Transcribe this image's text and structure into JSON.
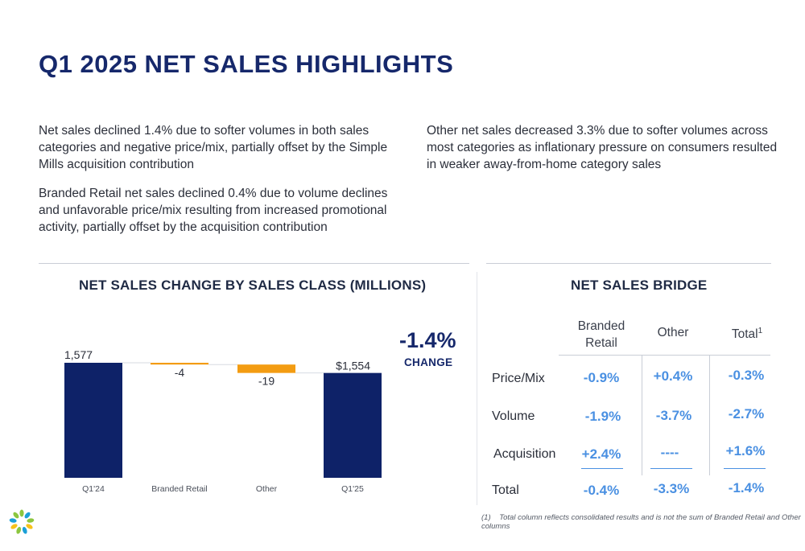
{
  "title": "Q1 2025 NET SALES HIGHLIGHTS",
  "paragraphs": {
    "p1": "Net sales declined 1.4% due to softer volumes in both sales categories and negative price/mix, partially offset by the Simple Mills acquisition contribution",
    "p2": "Branded Retail net sales declined 0.4% due to volume declines and unfavorable price/mix resulting from increased promotional activity, partially offset by the acquisition contribution",
    "p3": "Other net sales decreased 3.3% due to softer volumes across most categories as inflationary pressure on consumers resulted in weaker away-from-home category sales"
  },
  "chart_title": "NET SALES CHANGE BY SALES CLASS (MILLIONS)",
  "change": {
    "value": "-1.4%",
    "label": "CHANGE"
  },
  "chart_data": {
    "type": "bar",
    "subtype": "waterfall",
    "categories": [
      "Q1'24",
      "Branded Retail",
      "Other",
      "Q1'25"
    ],
    "values": [
      1577,
      -4,
      -19,
      1554
    ],
    "kinds": [
      "total",
      "delta",
      "delta",
      "total"
    ],
    "data_labels": [
      "1,577",
      "-4",
      "-19",
      "$1,554"
    ],
    "colors": {
      "total": "#0e2268",
      "delta": "#f39c12"
    },
    "title": "NET SALES CHANGE BY SALES CLASS (MILLIONS)",
    "grid": false
  },
  "bridge": {
    "title": "NET SALES BRIDGE",
    "columns": {
      "branded": [
        "Branded",
        "Retail"
      ],
      "other": "Other",
      "total": "Total",
      "total_sup": "1"
    },
    "rows": [
      {
        "label": "Price/Mix",
        "branded": "-0.9%",
        "other": "+0.4%",
        "total": "-0.3%"
      },
      {
        "label": "Volume",
        "branded": "-1.9%",
        "other": "-3.7%",
        "total": "-2.7%"
      },
      {
        "label": "Acquisition",
        "branded": "+2.4%",
        "other": "----",
        "total": "+1.6%"
      },
      {
        "label": "Total",
        "branded": "-0.4%",
        "other": "-3.3%",
        "total": "-1.4%"
      }
    ],
    "value_color": "#4a90e2"
  },
  "footnote": {
    "marker": "(1)",
    "text": "Total column reflects consolidated results and is not the sum of Branded Retail and Other columns"
  },
  "icons": {
    "logo": "sunburst-logo-icon"
  }
}
